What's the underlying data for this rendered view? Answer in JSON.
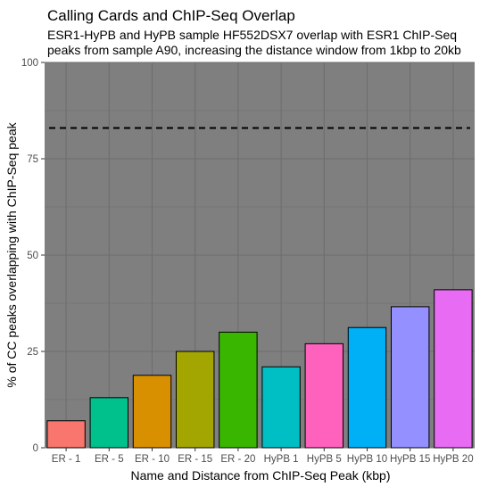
{
  "chart_data": {
    "type": "bar",
    "title": "Calling Cards and ChIP-Seq Overlap",
    "subtitle_lines": [
      "ESR1-HyPB and HyPB sample HF552DSX7 overlap with ESR1 ChIP-Seq",
      "peaks from sample A90, increasing the distance window from 1kbp to 20kb"
    ],
    "xlabel": "Name and Distance from ChIP-Seq Peak (kbp)",
    "ylabel": "% of CC peaks overlapping with ChIP-Seq peak",
    "ylim": [
      0,
      100
    ],
    "yticks": [
      0,
      25,
      50,
      75,
      100
    ],
    "categories": [
      "ER - 1",
      "ER - 5",
      "ER - 10",
      "ER - 15",
      "ER - 20",
      "HyPB 1",
      "HyPB 5",
      "HyPB 10",
      "HyPB 15",
      "HyPB 20"
    ],
    "values": [
      7,
      13,
      18.8,
      25,
      30,
      21,
      27,
      31.2,
      36.6,
      41
    ],
    "bar_colors": [
      "#F8766D",
      "#00C08B",
      "#D89000",
      "#A3A500",
      "#39B600",
      "#00BFC4",
      "#FF62BC",
      "#00B0F6",
      "#9590FF",
      "#E76BF3"
    ],
    "reference_line": {
      "value": 83,
      "style": "dashed"
    },
    "grid": true,
    "panel_background": "#7f7f7f",
    "grid_color": "#6e6e6e"
  }
}
